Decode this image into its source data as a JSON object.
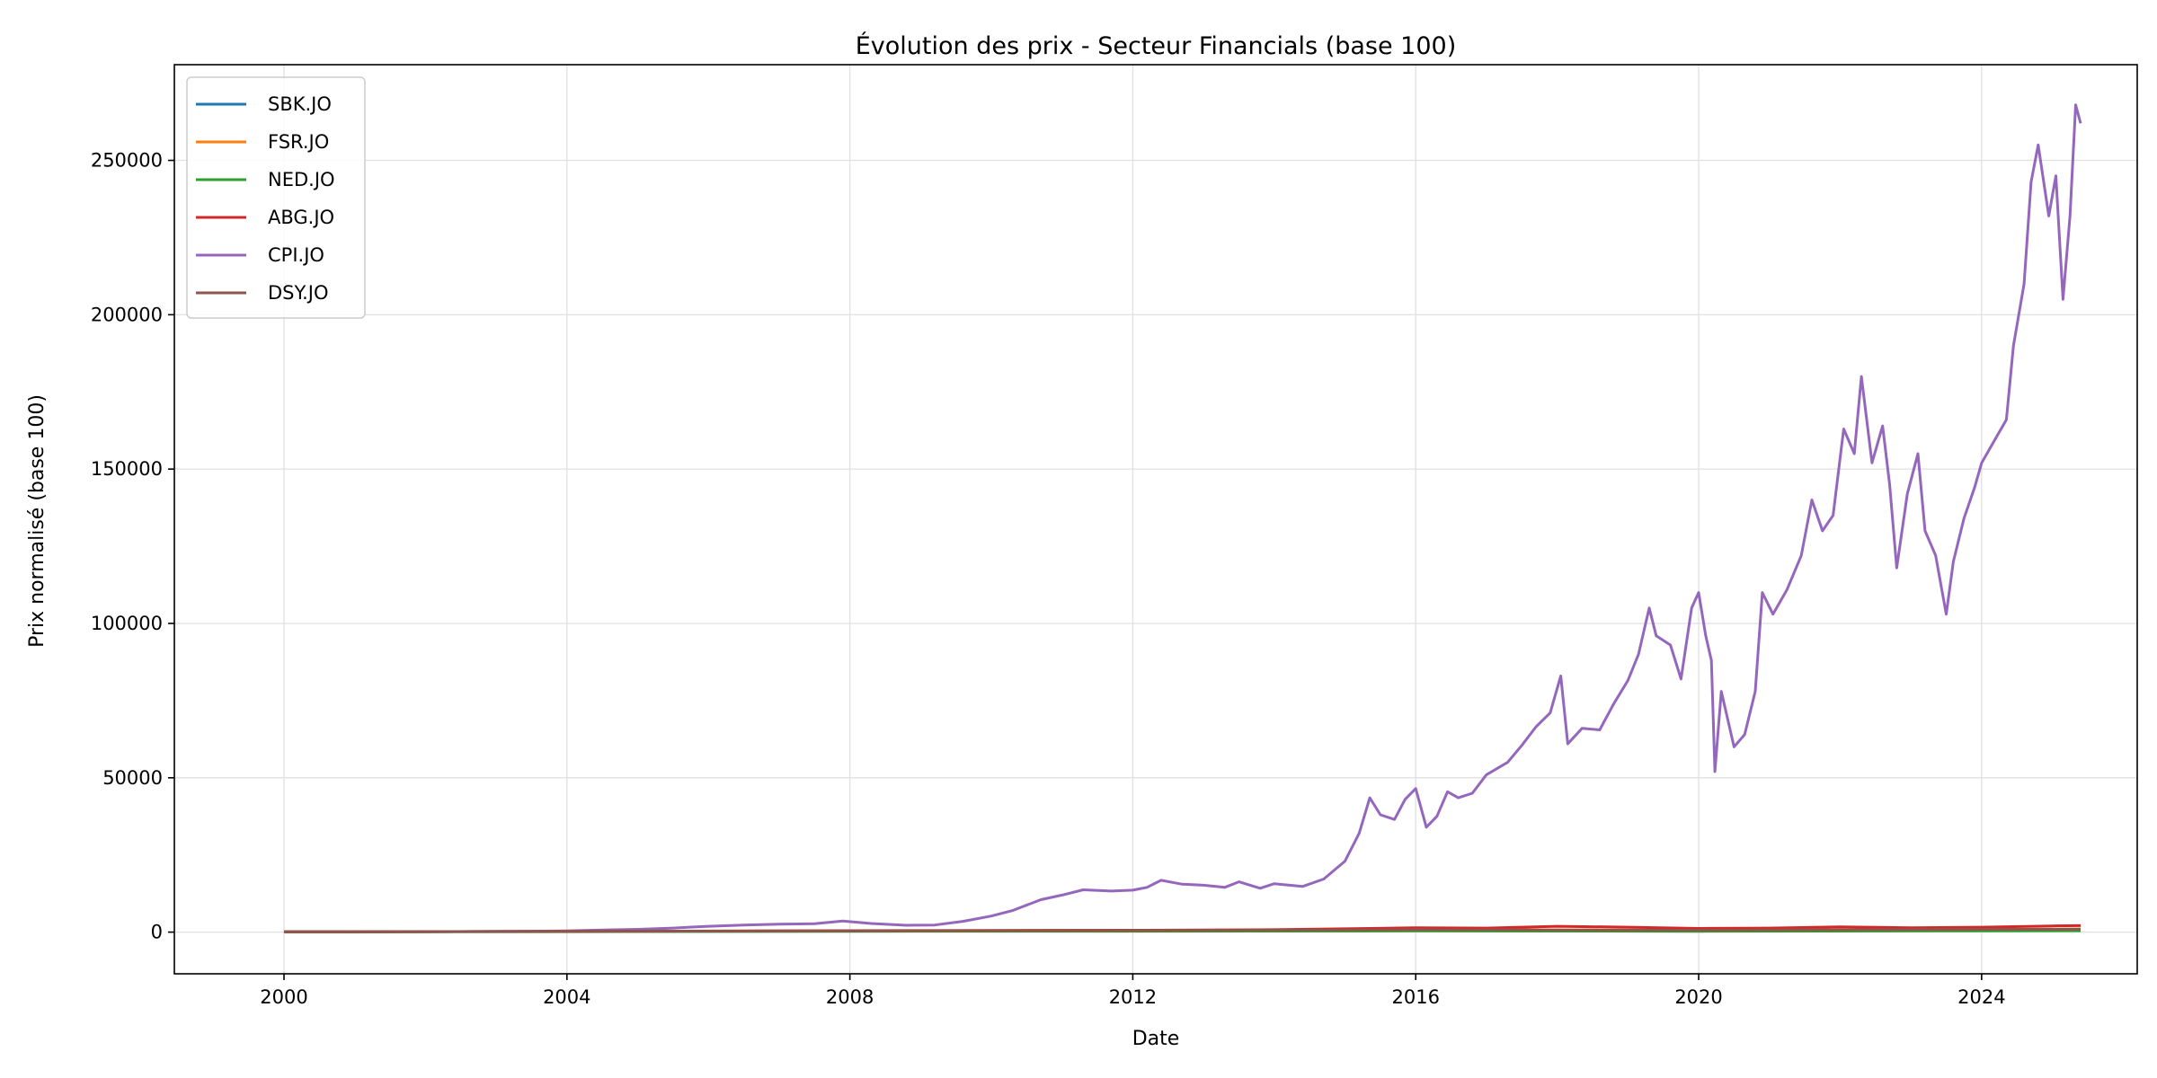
{
  "chart_data": {
    "type": "line",
    "title": "Évolution des prix - Secteur Financials (base 100)",
    "xlabel": "Date",
    "ylabel": "Prix normalisé (base 100)",
    "xlim": [
      1998.45,
      2026.2
    ],
    "ylim": [
      -13500,
      281000
    ],
    "x_ticks": [
      2000,
      2004,
      2008,
      2012,
      2016,
      2020,
      2024
    ],
    "x_tick_labels": [
      "2000",
      "2004",
      "2008",
      "2012",
      "2016",
      "2020",
      "2024"
    ],
    "y_ticks": [
      0,
      50000,
      100000,
      150000,
      200000,
      250000
    ],
    "y_tick_labels": [
      "0",
      "50000",
      "100000",
      "150000",
      "200000",
      "250000"
    ],
    "grid": true,
    "legend_position": "top-left",
    "series": [
      {
        "name": "SBK.JO",
        "color": "#1f77b4",
        "points": [
          [
            2000.0,
            100
          ],
          [
            2004.0,
            180
          ],
          [
            2008.0,
            310
          ],
          [
            2012.0,
            420
          ],
          [
            2016.0,
            520
          ],
          [
            2020.0,
            480
          ],
          [
            2024.0,
            610
          ],
          [
            2025.4,
            650
          ]
        ]
      },
      {
        "name": "FSR.JO",
        "color": "#ff7f0e",
        "points": [
          [
            2000.0,
            100
          ],
          [
            2004.0,
            200
          ],
          [
            2008.0,
            380
          ],
          [
            2012.0,
            560
          ],
          [
            2016.0,
            800
          ],
          [
            2020.0,
            650
          ],
          [
            2024.0,
            900
          ],
          [
            2025.4,
            950
          ]
        ]
      },
      {
        "name": "NED.JO",
        "color": "#2ca02c",
        "points": [
          [
            2000.0,
            100
          ],
          [
            2004.0,
            150
          ],
          [
            2008.0,
            260
          ],
          [
            2012.0,
            300
          ],
          [
            2016.0,
            380
          ],
          [
            2020.0,
            260
          ],
          [
            2024.0,
            420
          ],
          [
            2025.4,
            450
          ]
        ]
      },
      {
        "name": "ABG.JO",
        "color": "#d62728",
        "points": [
          [
            2000.0,
            100
          ],
          [
            2004.0,
            250
          ],
          [
            2008.0,
            480
          ],
          [
            2010.0,
            560
          ],
          [
            2012.0,
            600
          ],
          [
            2014.0,
            800
          ],
          [
            2016.0,
            1400
          ],
          [
            2017.0,
            1300
          ],
          [
            2018.0,
            1900
          ],
          [
            2019.0,
            1600
          ],
          [
            2020.0,
            1200
          ],
          [
            2021.0,
            1300
          ],
          [
            2022.0,
            1700
          ],
          [
            2023.0,
            1400
          ],
          [
            2024.0,
            1600
          ],
          [
            2025.0,
            2000
          ],
          [
            2025.4,
            2100
          ]
        ]
      },
      {
        "name": "CPI.JO",
        "color": "#9467bd",
        "points": [
          [
            2000.0,
            100
          ],
          [
            2002.0,
            150
          ],
          [
            2003.5,
            300
          ],
          [
            2004.0,
            400
          ],
          [
            2004.5,
            700
          ],
          [
            2005.0,
            900
          ],
          [
            2005.5,
            1300
          ],
          [
            2006.0,
            1900
          ],
          [
            2006.5,
            2300
          ],
          [
            2007.0,
            2600
          ],
          [
            2007.5,
            2700
          ],
          [
            2007.9,
            3600
          ],
          [
            2008.3,
            2800
          ],
          [
            2008.8,
            2200
          ],
          [
            2009.2,
            2300
          ],
          [
            2009.6,
            3500
          ],
          [
            2010.0,
            5200
          ],
          [
            2010.3,
            7000
          ],
          [
            2010.7,
            10500
          ],
          [
            2011.0,
            12000
          ],
          [
            2011.3,
            13700
          ],
          [
            2011.7,
            13300
          ],
          [
            2012.0,
            13600
          ],
          [
            2012.2,
            14500
          ],
          [
            2012.4,
            16800
          ],
          [
            2012.7,
            15500
          ],
          [
            2013.0,
            15200
          ],
          [
            2013.3,
            14500
          ],
          [
            2013.5,
            16300
          ],
          [
            2013.8,
            14200
          ],
          [
            2014.0,
            15700
          ],
          [
            2014.4,
            14800
          ],
          [
            2014.7,
            17200
          ],
          [
            2015.0,
            23000
          ],
          [
            2015.2,
            32000
          ],
          [
            2015.35,
            43500
          ],
          [
            2015.5,
            38000
          ],
          [
            2015.7,
            36500
          ],
          [
            2015.85,
            43000
          ],
          [
            2016.0,
            46500
          ],
          [
            2016.15,
            34000
          ],
          [
            2016.3,
            37500
          ],
          [
            2016.45,
            45500
          ],
          [
            2016.6,
            43500
          ],
          [
            2016.8,
            45000
          ],
          [
            2017.0,
            51000
          ],
          [
            2017.3,
            55000
          ],
          [
            2017.5,
            60500
          ],
          [
            2017.7,
            66500
          ],
          [
            2017.9,
            71000
          ],
          [
            2018.05,
            83000
          ],
          [
            2018.15,
            61000
          ],
          [
            2018.35,
            66000
          ],
          [
            2018.6,
            65500
          ],
          [
            2018.8,
            74000
          ],
          [
            2019.0,
            81500
          ],
          [
            2019.15,
            90000
          ],
          [
            2019.3,
            105000
          ],
          [
            2019.4,
            96000
          ],
          [
            2019.6,
            93000
          ],
          [
            2019.75,
            82000
          ],
          [
            2019.9,
            105000
          ],
          [
            2020.0,
            110000
          ],
          [
            2020.1,
            96000
          ],
          [
            2020.18,
            88000
          ],
          [
            2020.23,
            52000
          ],
          [
            2020.32,
            78000
          ],
          [
            2020.5,
            60000
          ],
          [
            2020.65,
            64000
          ],
          [
            2020.8,
            78000
          ],
          [
            2020.9,
            110000
          ],
          [
            2021.05,
            103000
          ],
          [
            2021.25,
            111000
          ],
          [
            2021.45,
            122000
          ],
          [
            2021.6,
            140000
          ],
          [
            2021.75,
            130000
          ],
          [
            2021.9,
            135000
          ],
          [
            2022.05,
            163000
          ],
          [
            2022.2,
            155000
          ],
          [
            2022.3,
            180000
          ],
          [
            2022.45,
            152000
          ],
          [
            2022.6,
            164000
          ],
          [
            2022.7,
            145000
          ],
          [
            2022.8,
            118000
          ],
          [
            2022.95,
            142000
          ],
          [
            2023.1,
            155000
          ],
          [
            2023.2,
            130000
          ],
          [
            2023.35,
            122000
          ],
          [
            2023.5,
            103000
          ],
          [
            2023.6,
            120000
          ],
          [
            2023.75,
            134000
          ],
          [
            2023.9,
            144000
          ],
          [
            2024.0,
            152000
          ],
          [
            2024.2,
            160000
          ],
          [
            2024.35,
            166000
          ],
          [
            2024.45,
            190000
          ],
          [
            2024.6,
            210000
          ],
          [
            2024.7,
            243000
          ],
          [
            2024.8,
            255000
          ],
          [
            2024.95,
            232000
          ],
          [
            2025.05,
            245000
          ],
          [
            2025.15,
            205000
          ],
          [
            2025.25,
            232000
          ],
          [
            2025.33,
            268000
          ],
          [
            2025.4,
            262000
          ]
        ]
      },
      {
        "name": "DSY.JO",
        "color": "#8c564b",
        "points": [
          [
            2000.0,
            100
          ],
          [
            2004.0,
            250
          ],
          [
            2008.0,
            420
          ],
          [
            2012.0,
            500
          ],
          [
            2016.0,
            760
          ],
          [
            2020.0,
            620
          ],
          [
            2024.0,
            880
          ],
          [
            2025.4,
            950
          ]
        ]
      }
    ]
  }
}
